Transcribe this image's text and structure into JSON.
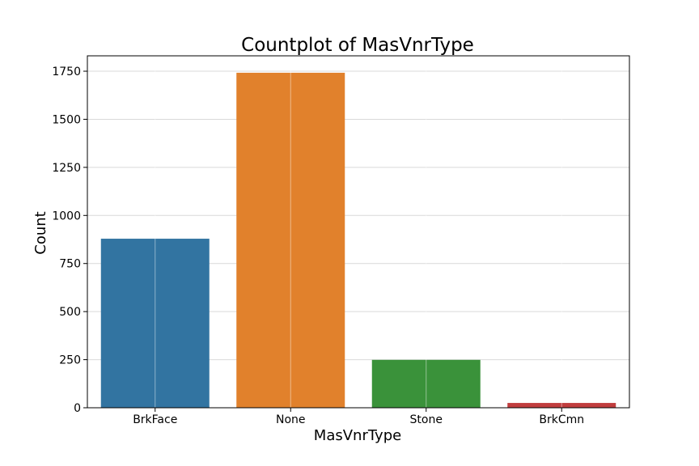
{
  "chart_data": {
    "type": "bar",
    "title": "Countplot of MasVnrType",
    "xlabel": "MasVnrType",
    "ylabel": "Count",
    "categories": [
      "BrkFace",
      "None",
      "Stone",
      "BrkCmn"
    ],
    "values": [
      879,
      1742,
      249,
      25
    ],
    "colors": [
      "#3274a1",
      "#e1812c",
      "#3a923a",
      "#c03d3e"
    ],
    "ylim": [
      0,
      1830
    ],
    "yticks": [
      0,
      250,
      500,
      750,
      1000,
      1250,
      1500,
      1750
    ],
    "grid": true
  }
}
